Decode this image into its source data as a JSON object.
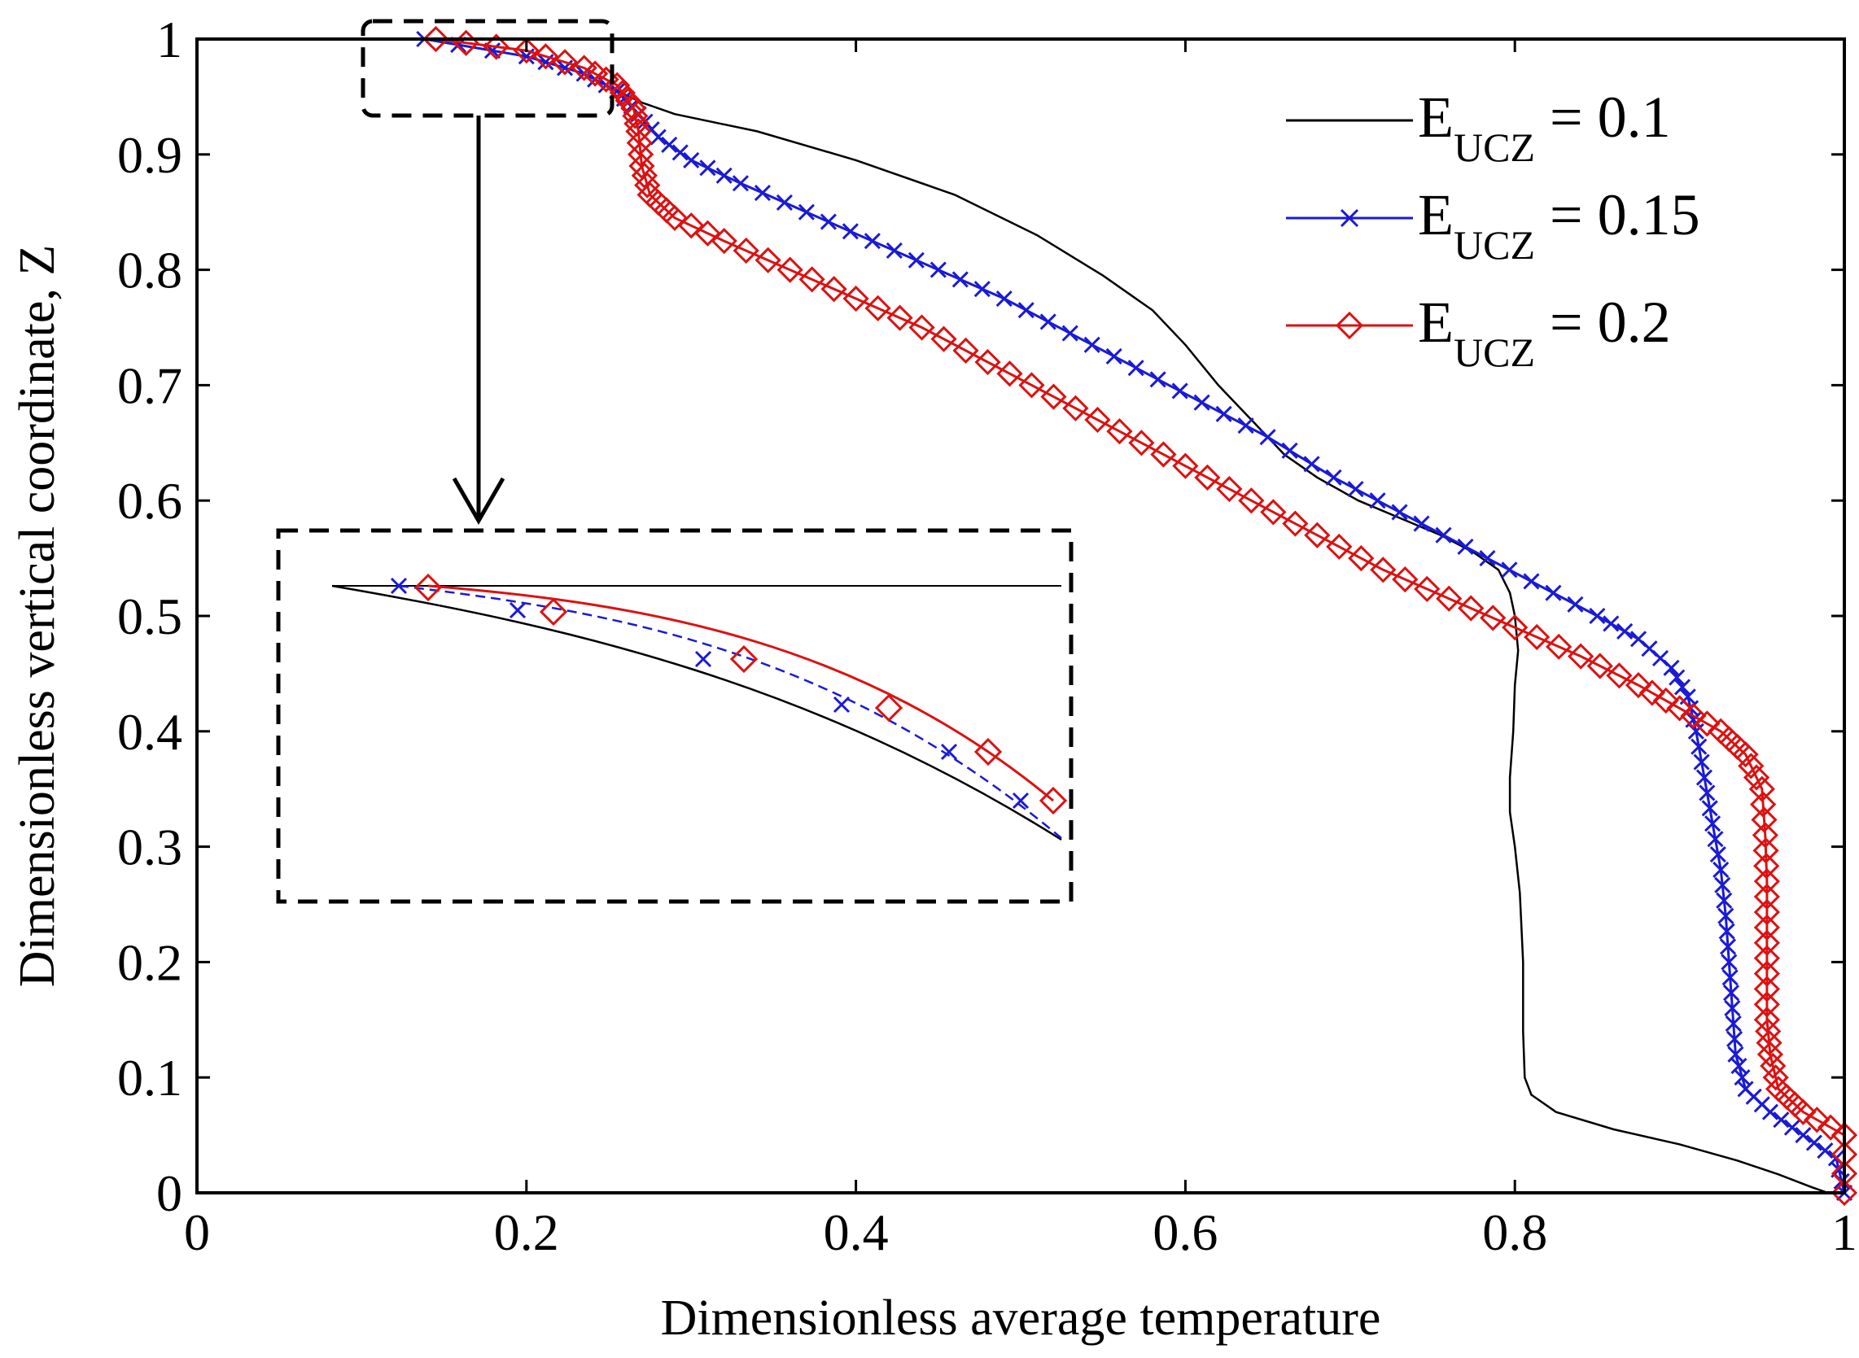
{
  "chart_data": {
    "type": "line",
    "title": "",
    "xlabel": "Dimensionless average temperature",
    "ylabel": "Dimensionless vertical coordinate, Z",
    "xlim": [
      0,
      1
    ],
    "ylim": [
      0,
      1
    ],
    "xticks": [
      "0",
      "0.2",
      "0.4",
      "0.6",
      "0.8",
      "1"
    ],
    "yticks": [
      "0",
      "0.1",
      "0.2",
      "0.3",
      "0.4",
      "0.5",
      "0.6",
      "0.7",
      "0.8",
      "0.9",
      "1"
    ],
    "grid": false,
    "legend_position": "top-right",
    "legend": [
      {
        "prefix": "E",
        "sub": "UCZ",
        "suffix": " = 0.1",
        "color": "#000000",
        "marker": "none"
      },
      {
        "prefix": "E",
        "sub": "UCZ",
        "suffix": " = 0.15",
        "color": "#1a1ad6",
        "marker": "x"
      },
      {
        "prefix": "E",
        "sub": "UCZ",
        "suffix": " = 0.2",
        "color": "#dd1111",
        "marker": "diamond"
      }
    ],
    "series": [
      {
        "name": "E_UCZ = 0.1",
        "color": "#000000",
        "marker": "none",
        "points": [
          [
            0.138,
            1.0
          ],
          [
            0.2,
            0.985
          ],
          [
            0.235,
            0.97
          ],
          [
            0.255,
            0.955
          ],
          [
            0.27,
            0.945
          ],
          [
            0.29,
            0.935
          ],
          [
            0.34,
            0.92
          ],
          [
            0.4,
            0.895
          ],
          [
            0.46,
            0.865
          ],
          [
            0.51,
            0.83
          ],
          [
            0.55,
            0.795
          ],
          [
            0.58,
            0.765
          ],
          [
            0.6,
            0.735
          ],
          [
            0.62,
            0.7
          ],
          [
            0.64,
            0.67
          ],
          [
            0.66,
            0.64
          ],
          [
            0.68,
            0.62
          ],
          [
            0.705,
            0.6
          ],
          [
            0.73,
            0.585
          ],
          [
            0.755,
            0.57
          ],
          [
            0.775,
            0.555
          ],
          [
            0.79,
            0.54
          ],
          [
            0.797,
            0.52
          ],
          [
            0.8,
            0.5
          ],
          [
            0.802,
            0.47
          ],
          [
            0.8,
            0.44
          ],
          [
            0.799,
            0.4
          ],
          [
            0.797,
            0.36
          ],
          [
            0.797,
            0.33
          ],
          [
            0.8,
            0.3
          ],
          [
            0.803,
            0.26
          ],
          [
            0.805,
            0.2
          ],
          [
            0.805,
            0.14
          ],
          [
            0.806,
            0.1
          ],
          [
            0.81,
            0.085
          ],
          [
            0.825,
            0.07
          ],
          [
            0.86,
            0.055
          ],
          [
            0.9,
            0.042
          ],
          [
            0.935,
            0.028
          ],
          [
            0.96,
            0.016
          ],
          [
            0.98,
            0.005
          ],
          [
            0.99,
            0.0
          ]
        ]
      },
      {
        "name": "E_UCZ = 0.15",
        "color": "#1a1ad6",
        "marker": "x",
        "points": [
          [
            0.138,
            1.0
          ],
          [
            0.2,
            0.985
          ],
          [
            0.235,
            0.97
          ],
          [
            0.255,
            0.955
          ],
          [
            0.268,
            0.935
          ],
          [
            0.28,
            0.915
          ],
          [
            0.3,
            0.895
          ],
          [
            0.33,
            0.875
          ],
          [
            0.37,
            0.85
          ],
          [
            0.41,
            0.825
          ],
          [
            0.45,
            0.8
          ],
          [
            0.49,
            0.775
          ],
          [
            0.53,
            0.745
          ],
          [
            0.57,
            0.715
          ],
          [
            0.61,
            0.685
          ],
          [
            0.65,
            0.655
          ],
          [
            0.69,
            0.62
          ],
          [
            0.73,
            0.59
          ],
          [
            0.77,
            0.56
          ],
          [
            0.81,
            0.53
          ],
          [
            0.85,
            0.5
          ],
          [
            0.875,
            0.48
          ],
          [
            0.895,
            0.455
          ],
          [
            0.905,
            0.43
          ],
          [
            0.91,
            0.4
          ],
          [
            0.915,
            0.36
          ],
          [
            0.92,
            0.32
          ],
          [
            0.925,
            0.28
          ],
          [
            0.928,
            0.24
          ],
          [
            0.93,
            0.2
          ],
          [
            0.932,
            0.16
          ],
          [
            0.934,
            0.12
          ],
          [
            0.94,
            0.09
          ],
          [
            0.955,
            0.07
          ],
          [
            0.975,
            0.05
          ],
          [
            0.995,
            0.03
          ],
          [
            1.0,
            0.0
          ]
        ]
      },
      {
        "name": "E_UCZ = 0.2",
        "color": "#dd1111",
        "marker": "diamond",
        "points": [
          [
            0.145,
            1.0
          ],
          [
            0.2,
            0.99
          ],
          [
            0.235,
            0.975
          ],
          [
            0.255,
            0.96
          ],
          [
            0.265,
            0.94
          ],
          [
            0.268,
            0.92
          ],
          [
            0.27,
            0.89
          ],
          [
            0.275,
            0.865
          ],
          [
            0.29,
            0.845
          ],
          [
            0.32,
            0.825
          ],
          [
            0.36,
            0.8
          ],
          [
            0.4,
            0.775
          ],
          [
            0.44,
            0.75
          ],
          [
            0.48,
            0.72
          ],
          [
            0.52,
            0.69
          ],
          [
            0.56,
            0.66
          ],
          [
            0.6,
            0.63
          ],
          [
            0.64,
            0.6
          ],
          [
            0.68,
            0.57
          ],
          [
            0.72,
            0.54
          ],
          [
            0.76,
            0.515
          ],
          [
            0.8,
            0.49
          ],
          [
            0.84,
            0.465
          ],
          [
            0.875,
            0.44
          ],
          [
            0.9,
            0.42
          ],
          [
            0.925,
            0.4
          ],
          [
            0.94,
            0.38
          ],
          [
            0.95,
            0.35
          ],
          [
            0.952,
            0.31
          ],
          [
            0.953,
            0.27
          ],
          [
            0.953,
            0.23
          ],
          [
            0.953,
            0.19
          ],
          [
            0.953,
            0.15
          ],
          [
            0.955,
            0.12
          ],
          [
            0.96,
            0.09
          ],
          [
            0.975,
            0.07
          ],
          [
            1.0,
            0.05
          ],
          [
            1.0,
            0.0
          ]
        ]
      }
    ],
    "annotations": [
      {
        "type": "box",
        "label": "zoom-region"
      },
      {
        "type": "arrow",
        "label": "zoom-arrow"
      },
      {
        "type": "inset",
        "label": "zoomed-inset"
      }
    ]
  }
}
